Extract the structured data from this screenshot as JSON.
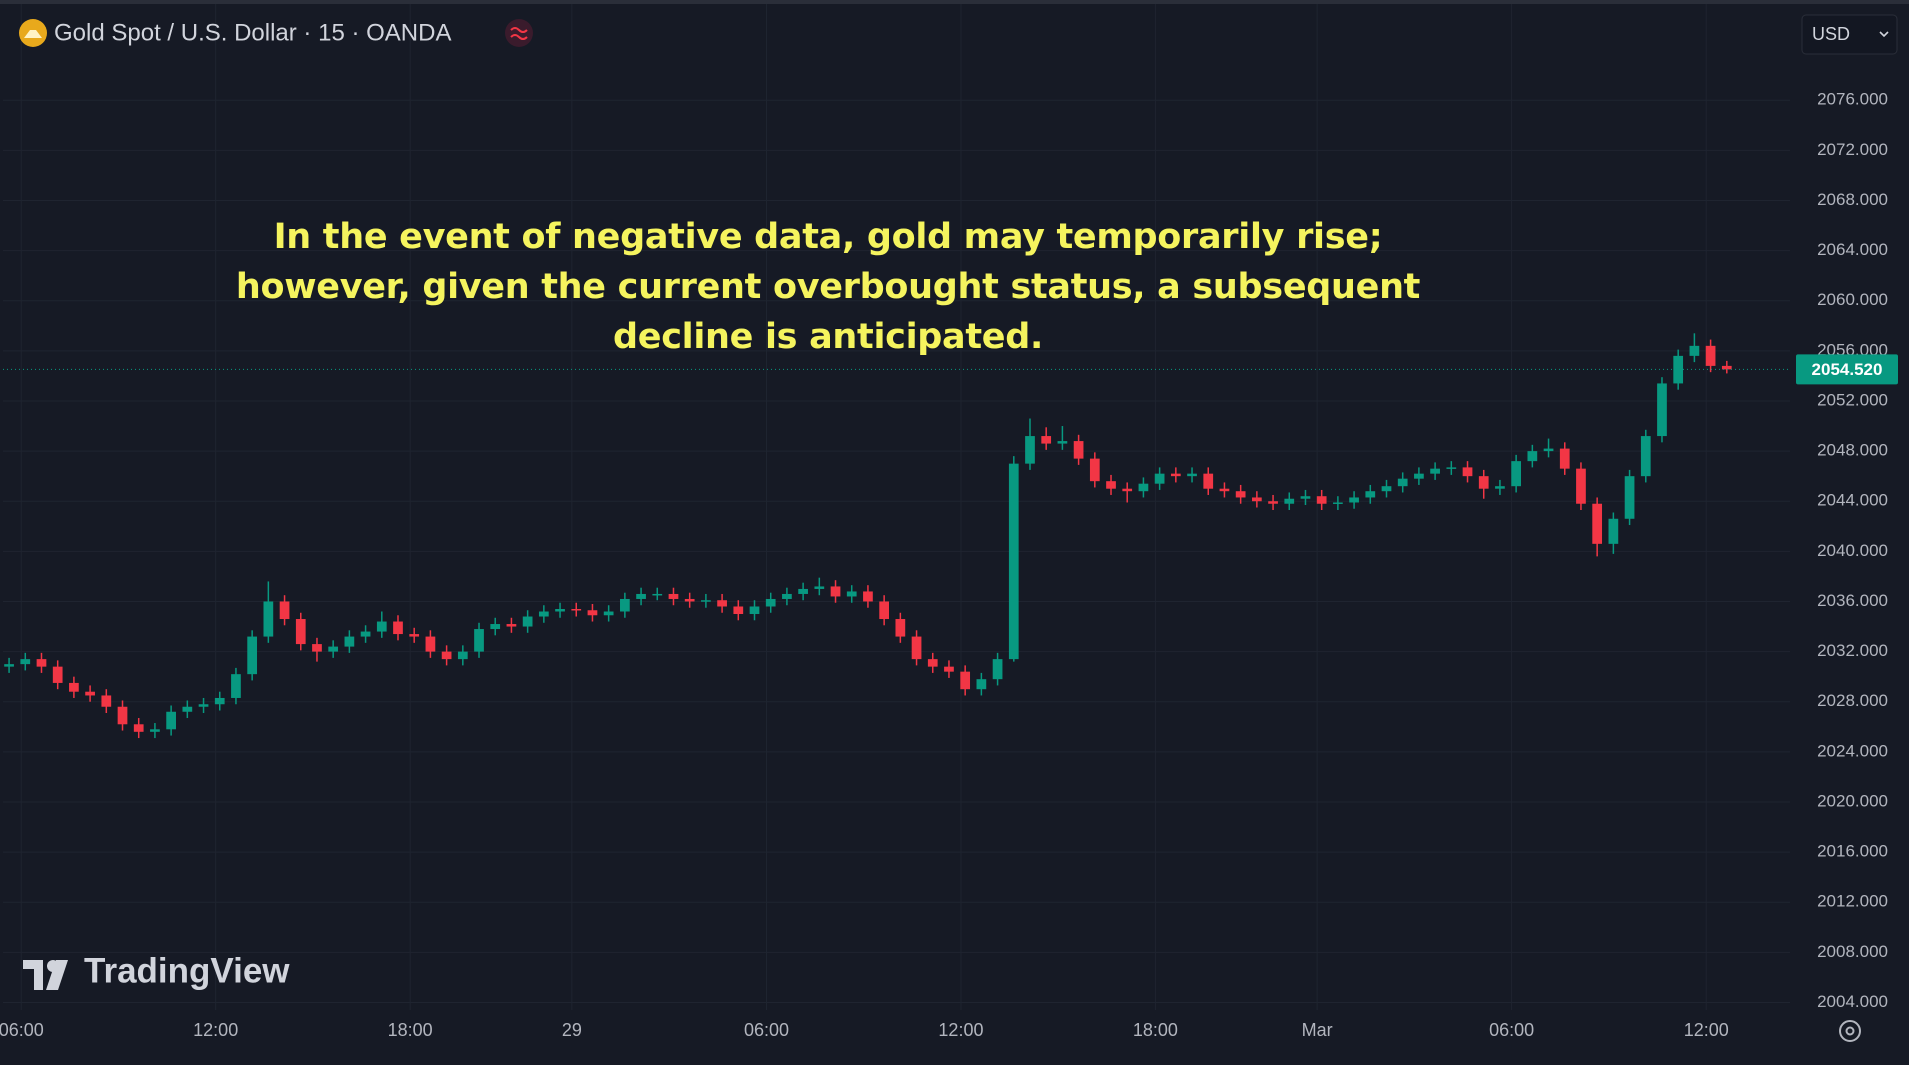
{
  "chart_data": {
    "type": "candlestick",
    "title": "Gold Spot / U.S. Dollar · 15 · OANDA",
    "currency": "USD",
    "annotation": "In the event of negative data, gold may temporarily rise; however, given the current overbought status, a subsequent decline is anticipated.",
    "watermark": "TradingView",
    "up_color": "#089981",
    "down_color": "#f23645",
    "grid": true,
    "open": [
      2030.8,
      2031.0,
      2031.4,
      2030.8,
      2029.5,
      2028.8,
      2028.5,
      2027.6,
      2026.2,
      2025.6,
      2025.8,
      2027.2,
      2027.6,
      2027.8,
      2028.3,
      2030.2,
      2033.2,
      2036.0,
      2034.6,
      2032.6,
      2032.0,
      2032.4,
      2033.2,
      2033.6,
      2034.4,
      2033.4,
      2033.2,
      2032.0,
      2031.4,
      2032.0,
      2033.8,
      2034.2,
      2034.0,
      2034.8,
      2035.2,
      2035.4,
      2035.3,
      2034.9,
      2035.2,
      2036.2,
      2036.6,
      2036.6,
      2036.2,
      2036.0,
      2036.1,
      2035.6,
      2035.0,
      2035.6,
      2036.2,
      2036.6,
      2037.0,
      2037.2,
      2036.4,
      2036.8,
      2036.0,
      2034.6,
      2033.2,
      2031.4,
      2030.8,
      2030.4,
      2029.0,
      2029.8,
      2031.4,
      2047.0,
      2049.2,
      2048.6,
      2048.8,
      2047.4,
      2045.6,
      2045.0,
      2044.8,
      2045.4,
      2046.2,
      2046.0,
      2046.2,
      2045.0,
      2044.8,
      2044.3,
      2044.0,
      2043.8,
      2044.2,
      2044.4,
      2043.8,
      2043.9,
      2044.3,
      2044.8,
      2045.2,
      2045.8,
      2046.2,
      2046.6,
      2046.7,
      2046.0,
      2045.0,
      2045.2,
      2047.2,
      2048.0,
      2048.2,
      2046.6,
      2043.8,
      2040.6,
      2042.6,
      2046.0,
      2049.2,
      2053.4,
      2055.6,
      2056.4,
      2054.8
    ],
    "high": [
      2031.5,
      2031.9,
      2031.9,
      2031.3,
      2030.0,
      2029.3,
      2029.0,
      2028.1,
      2026.7,
      2026.3,
      2027.7,
      2028.1,
      2028.3,
      2028.8,
      2030.7,
      2033.7,
      2037.6,
      2036.5,
      2035.1,
      2033.1,
      2032.9,
      2033.7,
      2034.1,
      2035.2,
      2034.9,
      2033.9,
      2033.7,
      2032.5,
      2032.5,
      2034.3,
      2034.7,
      2034.7,
      2035.3,
      2035.7,
      2035.9,
      2035.9,
      2035.8,
      2035.7,
      2036.7,
      2037.1,
      2037.1,
      2037.1,
      2036.7,
      2036.6,
      2036.6,
      2036.1,
      2036.1,
      2036.7,
      2037.1,
      2037.5,
      2037.9,
      2037.7,
      2037.3,
      2037.3,
      2036.5,
      2035.1,
      2033.7,
      2031.9,
      2031.3,
      2030.9,
      2030.3,
      2031.9,
      2047.6,
      2050.6,
      2049.9,
      2050.0,
      2049.3,
      2047.9,
      2046.1,
      2045.5,
      2045.9,
      2046.7,
      2046.7,
      2046.7,
      2046.7,
      2045.5,
      2045.3,
      2044.8,
      2044.5,
      2044.7,
      2044.9,
      2044.9,
      2044.4,
      2044.8,
      2045.3,
      2045.7,
      2046.3,
      2046.7,
      2047.1,
      2047.2,
      2047.2,
      2046.5,
      2045.7,
      2047.7,
      2048.5,
      2049.0,
      2048.7,
      2047.1,
      2044.3,
      2043.1,
      2046.5,
      2049.7,
      2053.9,
      2056.1,
      2057.4,
      2056.9,
      2055.2
    ],
    "low": [
      2030.3,
      2030.5,
      2030.3,
      2029.0,
      2028.3,
      2028.0,
      2027.1,
      2025.7,
      2025.1,
      2025.1,
      2025.3,
      2026.7,
      2027.1,
      2027.3,
      2027.8,
      2029.7,
      2032.7,
      2034.1,
      2032.1,
      2031.2,
      2031.5,
      2031.9,
      2032.7,
      2033.1,
      2032.9,
      2032.7,
      2031.5,
      2030.9,
      2030.9,
      2031.5,
      2033.3,
      2033.5,
      2033.5,
      2034.3,
      2034.7,
      2034.8,
      2034.4,
      2034.4,
      2034.7,
      2035.7,
      2036.1,
      2035.7,
      2035.5,
      2035.5,
      2035.1,
      2034.5,
      2034.5,
      2035.1,
      2035.7,
      2036.1,
      2036.5,
      2035.9,
      2035.9,
      2035.5,
      2034.1,
      2032.7,
      2030.9,
      2030.3,
      2029.9,
      2028.5,
      2028.5,
      2029.3,
      2031.2,
      2046.5,
      2048.1,
      2048.1,
      2046.9,
      2045.1,
      2044.5,
      2043.9,
      2044.3,
      2044.9,
      2045.5,
      2045.5,
      2044.5,
      2044.3,
      2043.8,
      2043.5,
      2043.3,
      2043.3,
      2043.7,
      2043.3,
      2043.3,
      2043.4,
      2043.8,
      2044.3,
      2044.7,
      2045.3,
      2045.7,
      2046.1,
      2045.5,
      2044.2,
      2044.5,
      2044.7,
      2046.7,
      2047.5,
      2046.1,
      2043.3,
      2039.6,
      2039.8,
      2042.1,
      2045.5,
      2048.7,
      2052.9,
      2055.1,
      2054.3,
      2054.2
    ],
    "close": [
      2031.0,
      2031.4,
      2030.8,
      2029.5,
      2028.8,
      2028.5,
      2027.6,
      2026.2,
      2025.6,
      2025.8,
      2027.2,
      2027.6,
      2027.8,
      2028.3,
      2030.2,
      2033.2,
      2036.0,
      2034.6,
      2032.6,
      2032.0,
      2032.4,
      2033.2,
      2033.6,
      2034.4,
      2033.4,
      2033.2,
      2032.0,
      2031.4,
      2032.0,
      2033.8,
      2034.2,
      2034.0,
      2034.8,
      2035.2,
      2035.4,
      2035.3,
      2034.9,
      2035.2,
      2036.2,
      2036.6,
      2036.6,
      2036.2,
      2036.0,
      2036.1,
      2035.6,
      2035.0,
      2035.6,
      2036.2,
      2036.6,
      2037.0,
      2037.2,
      2036.4,
      2036.8,
      2036.0,
      2034.6,
      2033.2,
      2031.4,
      2030.8,
      2030.4,
      2029.0,
      2029.8,
      2031.4,
      2047.0,
      2049.2,
      2048.6,
      2048.8,
      2047.4,
      2045.6,
      2045.0,
      2044.8,
      2045.4,
      2046.2,
      2046.0,
      2046.2,
      2045.0,
      2044.8,
      2044.3,
      2044.0,
      2043.8,
      2044.2,
      2044.4,
      2043.8,
      2043.9,
      2044.3,
      2044.8,
      2045.2,
      2045.8,
      2046.2,
      2046.6,
      2046.7,
      2046.0,
      2045.0,
      2045.2,
      2047.2,
      2048.0,
      2048.2,
      2046.6,
      2043.8,
      2040.6,
      2042.6,
      2046.0,
      2049.2,
      2053.4,
      2055.6,
      2056.4,
      2054.8,
      2054.52
    ],
    "last_price": {
      "value": 2054.52,
      "label": "2054.520"
    },
    "xlim": [
      -0.375,
      109.9
    ],
    "xticks": [
      {
        "value": 0.75,
        "label": "06:00"
      },
      {
        "value": 12.75,
        "label": "12:00"
      },
      {
        "value": 24.75,
        "label": "18:00"
      },
      {
        "value": 34.73,
        "label": "29"
      },
      {
        "value": 46.74,
        "label": "06:00"
      },
      {
        "value": 58.74,
        "label": "12:00"
      },
      {
        "value": 70.74,
        "label": "18:00"
      },
      {
        "value": 80.72,
        "label": "Mar"
      },
      {
        "value": 92.72,
        "label": "06:00"
      },
      {
        "value": 104.73,
        "label": "12:00"
      }
    ],
    "ylim": [
      2003.4,
      2083.2
    ],
    "yticks": [
      {
        "value": 2004,
        "label": "2004.000"
      },
      {
        "value": 2008,
        "label": "2008.000"
      },
      {
        "value": 2012,
        "label": "2012.000"
      },
      {
        "value": 2016,
        "label": "2016.000"
      },
      {
        "value": 2020,
        "label": "2020.000"
      },
      {
        "value": 2024,
        "label": "2024.000"
      },
      {
        "value": 2028,
        "label": "2028.000"
      },
      {
        "value": 2032,
        "label": "2032.000"
      },
      {
        "value": 2036,
        "label": "2036.000"
      },
      {
        "value": 2040,
        "label": "2040.000"
      },
      {
        "value": 2044,
        "label": "2044.000"
      },
      {
        "value": 2048,
        "label": "2048.000"
      },
      {
        "value": 2052,
        "label": "2052.000"
      },
      {
        "value": 2056,
        "label": "2056.000"
      },
      {
        "value": 2060,
        "label": "2060.000"
      },
      {
        "value": 2064,
        "label": "2064.000"
      },
      {
        "value": 2068,
        "label": "2068.000"
      },
      {
        "value": 2072,
        "label": "2072.000"
      },
      {
        "value": 2076,
        "label": "2076.000"
      }
    ]
  }
}
